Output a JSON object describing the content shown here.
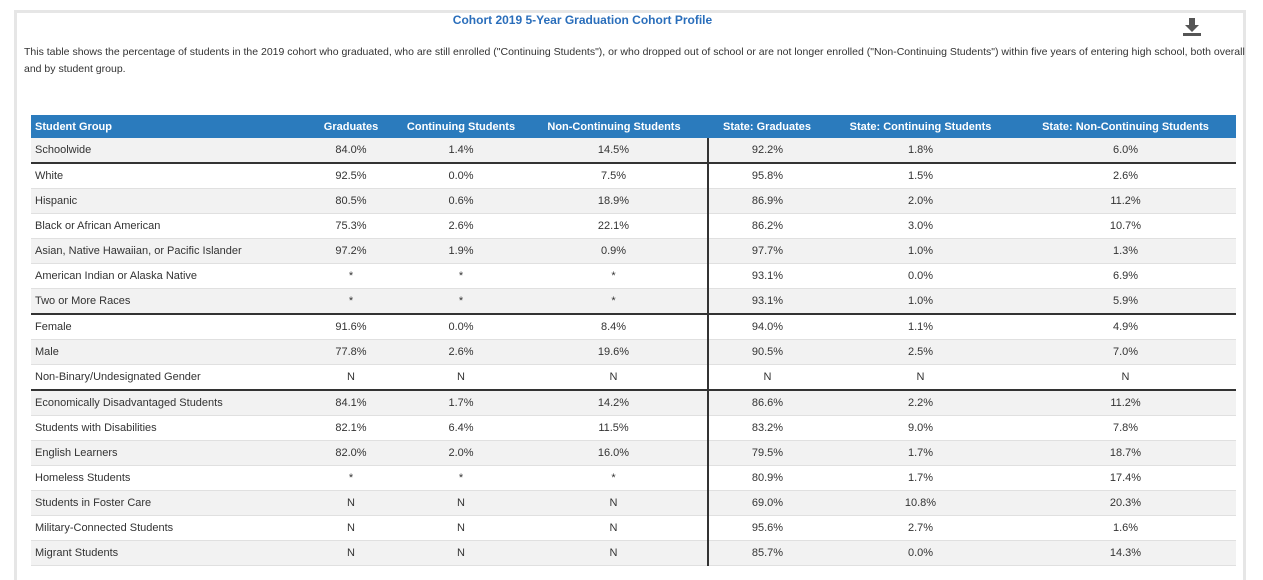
{
  "header": {
    "title": "Cohort 2019 5-Year Graduation Cohort Profile",
    "description": "This table shows the percentage of students in the 2019 cohort who graduated, who are still enrolled (\"Continuing Students\"), or who dropped out of school or are not longer enrolled (\"Non-Continuing Students\") within five years of entering high school, both overall and by student group."
  },
  "table": {
    "columns": [
      "Student Group",
      "Graduates",
      "Continuing Students",
      "Non-Continuing Students",
      "State: Graduates",
      "State: Continuing Students",
      "State: Non-Continuing Students"
    ],
    "rows": [
      [
        "Schoolwide",
        "84.0%",
        "1.4%",
        "14.5%",
        "92.2%",
        "1.8%",
        "6.0%"
      ],
      [
        "White",
        "92.5%",
        "0.0%",
        "7.5%",
        "95.8%",
        "1.5%",
        "2.6%"
      ],
      [
        "Hispanic",
        "80.5%",
        "0.6%",
        "18.9%",
        "86.9%",
        "2.0%",
        "11.2%"
      ],
      [
        "Black or African American",
        "75.3%",
        "2.6%",
        "22.1%",
        "86.2%",
        "3.0%",
        "10.7%"
      ],
      [
        "Asian, Native Hawaiian, or Pacific Islander",
        "97.2%",
        "1.9%",
        "0.9%",
        "97.7%",
        "1.0%",
        "1.3%"
      ],
      [
        "American Indian or Alaska Native",
        "*",
        "*",
        "*",
        "93.1%",
        "0.0%",
        "6.9%"
      ],
      [
        "Two or More Races",
        "*",
        "*",
        "*",
        "93.1%",
        "1.0%",
        "5.9%"
      ],
      [
        "Female",
        "91.6%",
        "0.0%",
        "8.4%",
        "94.0%",
        "1.1%",
        "4.9%"
      ],
      [
        "Male",
        "77.8%",
        "2.6%",
        "19.6%",
        "90.5%",
        "2.5%",
        "7.0%"
      ],
      [
        "Non-Binary/Undesignated Gender",
        "N",
        "N",
        "N",
        "N",
        "N",
        "N"
      ],
      [
        "Economically Disadvantaged Students",
        "84.1%",
        "1.7%",
        "14.2%",
        "86.6%",
        "2.2%",
        "11.2%"
      ],
      [
        "Students with Disabilities",
        "82.1%",
        "6.4%",
        "11.5%",
        "83.2%",
        "9.0%",
        "7.8%"
      ],
      [
        "English Learners",
        "82.0%",
        "2.0%",
        "16.0%",
        "79.5%",
        "1.7%",
        "18.7%"
      ],
      [
        "Homeless Students",
        "*",
        "*",
        "*",
        "80.9%",
        "1.7%",
        "17.4%"
      ],
      [
        "Students in Foster Care",
        "N",
        "N",
        "N",
        "69.0%",
        "10.8%",
        "20.3%"
      ],
      [
        "Military-Connected Students",
        "N",
        "N",
        "N",
        "95.6%",
        "2.7%",
        "1.6%"
      ],
      [
        "Migrant Students",
        "N",
        "N",
        "N",
        "85.7%",
        "0.0%",
        "14.3%"
      ]
    ]
  }
}
